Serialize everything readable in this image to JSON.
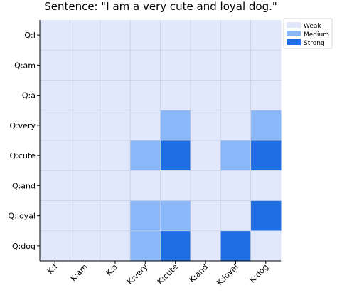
{
  "chart_data": {
    "type": "heatmap",
    "title": "Sentence: \"I am a very cute and loyal dog.\"",
    "x_categories": [
      "K:I",
      "K:am",
      "K:a",
      "K:very",
      "K:cute",
      "K:and",
      "K:loyal",
      "K:dog"
    ],
    "y_categories": [
      "Q:I",
      "Q:am",
      "Q:a",
      "Q:very",
      "Q:cute",
      "Q:and",
      "Q:loyal",
      "Q:dog"
    ],
    "values": [
      [
        0,
        0,
        0,
        0,
        0,
        0,
        0,
        0
      ],
      [
        0,
        0,
        0,
        0,
        0,
        0,
        0,
        0
      ],
      [
        0,
        0,
        0,
        0,
        0,
        0,
        0,
        0
      ],
      [
        0,
        0,
        0,
        0,
        1,
        0,
        0,
        1
      ],
      [
        0,
        0,
        0,
        1,
        2,
        0,
        1,
        2
      ],
      [
        0,
        0,
        0,
        0,
        0,
        0,
        0,
        0
      ],
      [
        0,
        0,
        0,
        1,
        1,
        0,
        0,
        2
      ],
      [
        0,
        0,
        0,
        1,
        2,
        0,
        2,
        0
      ]
    ],
    "levels": [
      {
        "value": 0,
        "label": "Weak",
        "color": "#e1e8fb"
      },
      {
        "value": 1,
        "label": "Medium",
        "color": "#8ab7f7"
      },
      {
        "value": 2,
        "label": "Strong",
        "color": "#1f6ee4"
      }
    ],
    "grid": true,
    "legend_position": "top-right",
    "colors": {
      "grid": "#c8cde0",
      "axis": "#000000"
    }
  }
}
